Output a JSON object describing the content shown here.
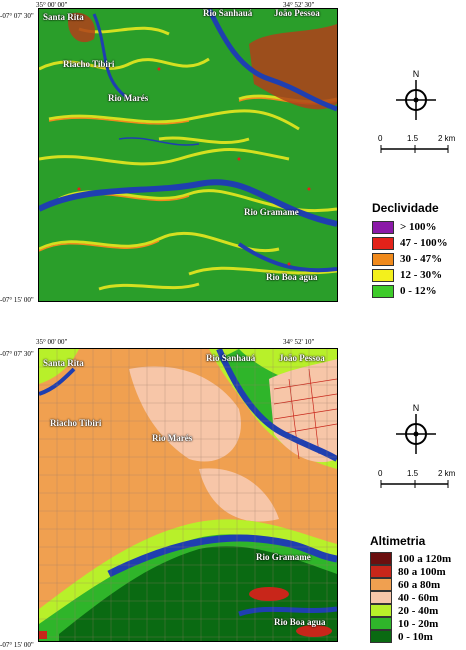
{
  "map1": {
    "coords": {
      "top_left": "35° 00' 00\"",
      "top_right": "34° 52' 30\"",
      "left_top": "-07° 07' 30\"",
      "left_bottom": "-07° 15' 00\""
    },
    "places": [
      "Santa Rita",
      "Rio Sanhauá",
      "João Pessoa",
      "Riacho Tibiri",
      "Rio Marés",
      "Rio Gramame",
      "Rio Boa agua"
    ],
    "legend": {
      "title": "Declividade",
      "items": [
        {
          "label": "> 100%",
          "color": "#8b1aa8"
        },
        {
          "label": "47 - 100%",
          "color": "#e32219"
        },
        {
          "label": "30 - 47%",
          "color": "#f08a1c"
        },
        {
          "label": "12 - 30%",
          "color": "#f3f01c"
        },
        {
          "label": "0 - 12%",
          "color": "#3ecb2a"
        }
      ]
    }
  },
  "map2": {
    "coords": {
      "top_left": "35° 00' 00\"",
      "top_right": "34° 52' 10\"",
      "left_top": "-07° 07' 30\"",
      "left_bottom": "-07° 15' 00\""
    },
    "places": [
      "Santa Rita",
      "Rio Sanhauá",
      "João Pessoa",
      "Riacho Tibiri",
      "Rio Marés",
      "Rio Gramame",
      "Rio Boa agua"
    ],
    "legend": {
      "title": "Altimetria",
      "items": [
        {
          "label": "100 a 120m",
          "color": "#6b0f0f"
        },
        {
          "label": "80 a 100m",
          "color": "#c8261a"
        },
        {
          "label": "60 a 80m",
          "color": "#f0a050"
        },
        {
          "label": "40 - 60m",
          "color": "#f7c6a8"
        },
        {
          "label": "20 - 40m",
          "color": "#b8f02a"
        },
        {
          "label": "10 - 20m",
          "color": "#2fb52a"
        },
        {
          "label": "0 - 10m",
          "color": "#0a6a12"
        }
      ]
    }
  },
  "north_label": "N",
  "scale": {
    "labels": [
      "0",
      "1.5",
      "2 km"
    ]
  },
  "colors": {
    "water": "#1f3fb0",
    "urban": "#b0401a"
  }
}
